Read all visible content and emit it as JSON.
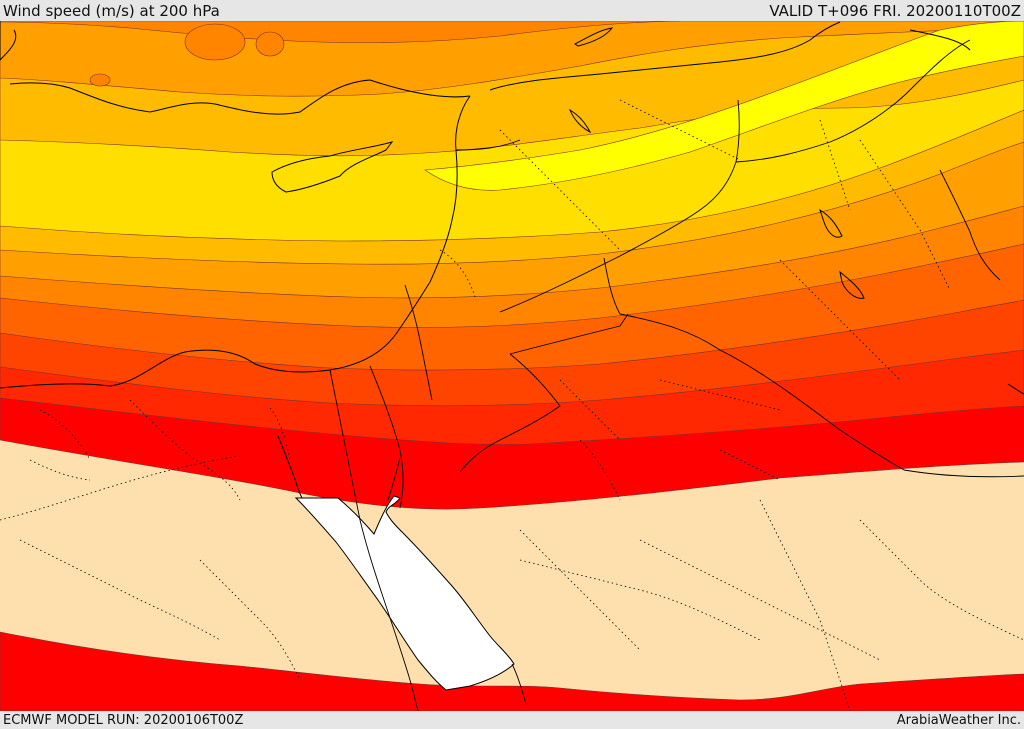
{
  "header": {
    "title": "Wind speed (m/s) at 200 hPa",
    "valid": "VALID T+096 FRI. 20200110T00Z"
  },
  "footer": {
    "model_run": "ECMWF MODEL RUN: 20200106T00Z",
    "credit": "ArabiaWeather Inc."
  },
  "colors": {
    "calm": "#fde0ae",
    "band_red": "#ff0000",
    "band_red_orange": "#ff2800",
    "band_orange_red": "#ff4400",
    "band_dark_orange": "#ff6400",
    "band_orange": "#ff8400",
    "band_light_orange": "#ffa000",
    "band_amber": "#ffbb00",
    "band_gold": "#ffdf00",
    "band_yellow": "#ffff00",
    "sea": "#ffffff"
  }
}
